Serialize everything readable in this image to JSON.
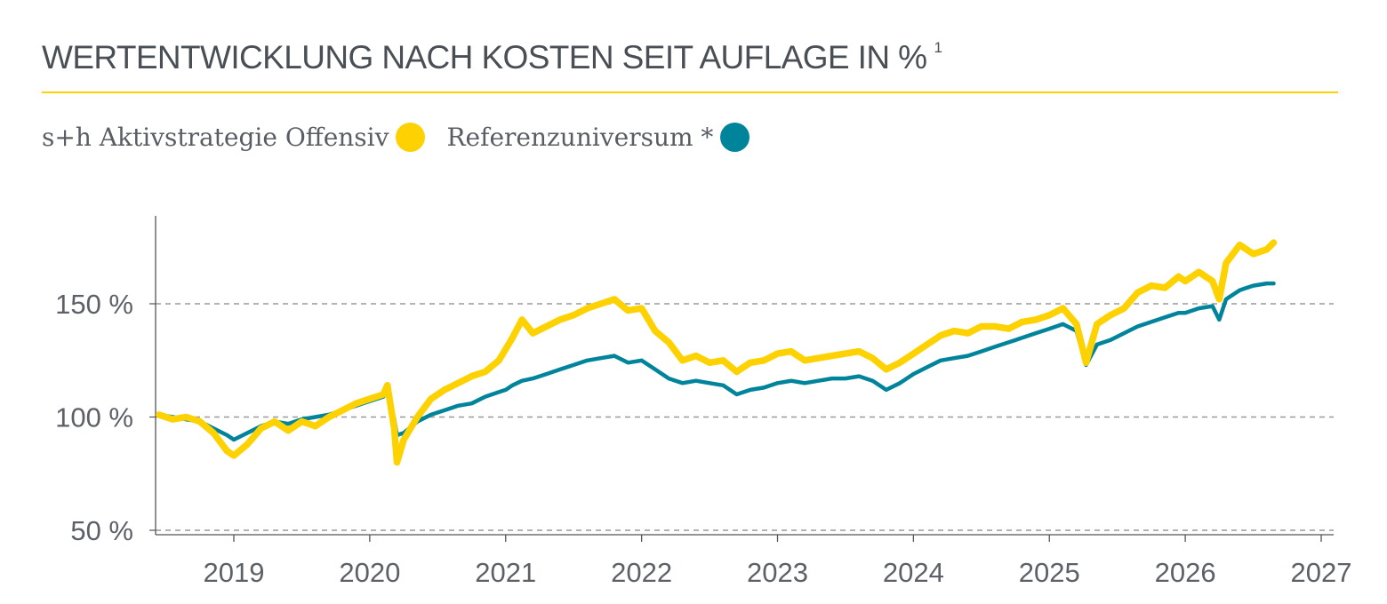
{
  "title": "WERTENTWICKLUNG NACH KOSTEN SEIT AUFLAGE IN %",
  "title_footnote": "1",
  "legend": {
    "series1": "s+h Aktivstrategie Offensiv",
    "series2": "Referenzuniversum *"
  },
  "colors": {
    "series1": "#fdd200",
    "series2": "#00849b",
    "title_rule": "#fdd200",
    "gridline": "#9a9a9a"
  },
  "chart_data": {
    "type": "line",
    "xlim": [
      2018.45,
      2027.0
    ],
    "ylim": [
      50,
      185
    ],
    "x_ticks": [
      2019,
      2020,
      2021,
      2022,
      2023,
      2024,
      2025,
      2026,
      2027
    ],
    "x_tick_labels": [
      "2019",
      "2020",
      "2021",
      "2022",
      "2023",
      "2024",
      "2025",
      "2026",
      "2027"
    ],
    "y_ticks": [
      50,
      100,
      150
    ],
    "y_tick_labels": [
      "50 %",
      "100 %",
      "150 %"
    ],
    "grid": "horizontal dashed",
    "legend_position": "top-left",
    "series": [
      {
        "name": "s+h Aktivstrategie Offensiv",
        "color": "#fdd200",
        "x": [
          2018.45,
          2018.55,
          2018.65,
          2018.75,
          2018.85,
          2018.95,
          2019.0,
          2019.1,
          2019.2,
          2019.3,
          2019.4,
          2019.5,
          2019.6,
          2019.7,
          2019.8,
          2019.9,
          2020.0,
          2020.1,
          2020.13,
          2020.18,
          2020.2,
          2020.25,
          2020.35,
          2020.45,
          2020.55,
          2020.65,
          2020.75,
          2020.85,
          2020.95,
          2021.0,
          2021.05,
          2021.12,
          2021.2,
          2021.3,
          2021.4,
          2021.5,
          2021.6,
          2021.7,
          2021.8,
          2021.9,
          2022.0,
          2022.1,
          2022.2,
          2022.3,
          2022.4,
          2022.5,
          2022.6,
          2022.7,
          2022.8,
          2022.9,
          2023.0,
          2023.1,
          2023.2,
          2023.3,
          2023.4,
          2023.5,
          2023.6,
          2023.7,
          2023.8,
          2023.9,
          2024.0,
          2024.1,
          2024.2,
          2024.3,
          2024.4,
          2024.5,
          2024.6,
          2024.7,
          2024.8,
          2024.9,
          2025.0,
          2025.1,
          2025.2,
          2025.27,
          2025.35,
          2025.45,
          2025.55,
          2025.65,
          2025.75,
          2025.85,
          2025.95,
          2026.0,
          2026.1,
          2026.2,
          2026.25,
          2026.3,
          2026.4,
          2026.5,
          2026.6,
          2026.65
        ],
        "y": [
          101,
          99,
          100,
          98,
          93,
          85,
          83,
          88,
          95,
          98,
          94,
          98,
          96,
          100,
          103,
          106,
          108,
          110,
          114,
          95,
          80,
          90,
          100,
          108,
          112,
          115,
          118,
          120,
          125,
          130,
          135,
          143,
          137,
          140,
          143,
          145,
          148,
          150,
          152,
          147,
          148,
          138,
          133,
          125,
          127,
          124,
          125,
          120,
          124,
          125,
          128,
          129,
          125,
          126,
          127,
          128,
          129,
          126,
          121,
          124,
          128,
          132,
          136,
          138,
          137,
          140,
          140,
          139,
          142,
          143,
          145,
          148,
          141,
          124,
          141,
          145,
          148,
          155,
          158,
          157,
          162,
          160,
          164,
          160,
          152,
          168,
          176,
          172,
          174,
          177
        ]
      },
      {
        "name": "Referenzuniversum *",
        "color": "#00849b",
        "x": [
          2018.45,
          2018.55,
          2018.65,
          2018.75,
          2018.85,
          2018.95,
          2019.0,
          2019.1,
          2019.2,
          2019.3,
          2019.4,
          2019.5,
          2019.6,
          2019.7,
          2019.8,
          2019.9,
          2020.0,
          2020.1,
          2020.13,
          2020.18,
          2020.2,
          2020.25,
          2020.35,
          2020.45,
          2020.55,
          2020.65,
          2020.75,
          2020.85,
          2020.95,
          2021.0,
          2021.05,
          2021.12,
          2021.2,
          2021.3,
          2021.4,
          2021.5,
          2021.6,
          2021.7,
          2021.8,
          2021.9,
          2022.0,
          2022.1,
          2022.2,
          2022.3,
          2022.4,
          2022.5,
          2022.6,
          2022.7,
          2022.8,
          2022.9,
          2023.0,
          2023.1,
          2023.2,
          2023.3,
          2023.4,
          2023.5,
          2023.6,
          2023.7,
          2023.8,
          2023.9,
          2024.0,
          2024.1,
          2024.2,
          2024.3,
          2024.4,
          2024.5,
          2024.6,
          2024.7,
          2024.8,
          2024.9,
          2025.0,
          2025.1,
          2025.2,
          2025.27,
          2025.35,
          2025.45,
          2025.55,
          2025.65,
          2025.75,
          2025.85,
          2025.95,
          2026.0,
          2026.1,
          2026.2,
          2026.25,
          2026.3,
          2026.4,
          2026.5,
          2026.6,
          2026.65
        ],
        "y": [
          101,
          100,
          99,
          98,
          95,
          92,
          90,
          93,
          96,
          98,
          97,
          99,
          100,
          101,
          103,
          105,
          107,
          109,
          112,
          99,
          92,
          93,
          98,
          101,
          103,
          105,
          106,
          109,
          111,
          112,
          114,
          116,
          117,
          119,
          121,
          123,
          125,
          126,
          127,
          124,
          125,
          121,
          117,
          115,
          116,
          115,
          114,
          110,
          112,
          113,
          115,
          116,
          115,
          116,
          117,
          117,
          118,
          116,
          112,
          115,
          119,
          122,
          125,
          126,
          127,
          129,
          131,
          133,
          135,
          137,
          139,
          141,
          138,
          123,
          132,
          134,
          137,
          140,
          142,
          144,
          146,
          146,
          148,
          149,
          143,
          152,
          156,
          158,
          159,
          159
        ]
      }
    ]
  }
}
